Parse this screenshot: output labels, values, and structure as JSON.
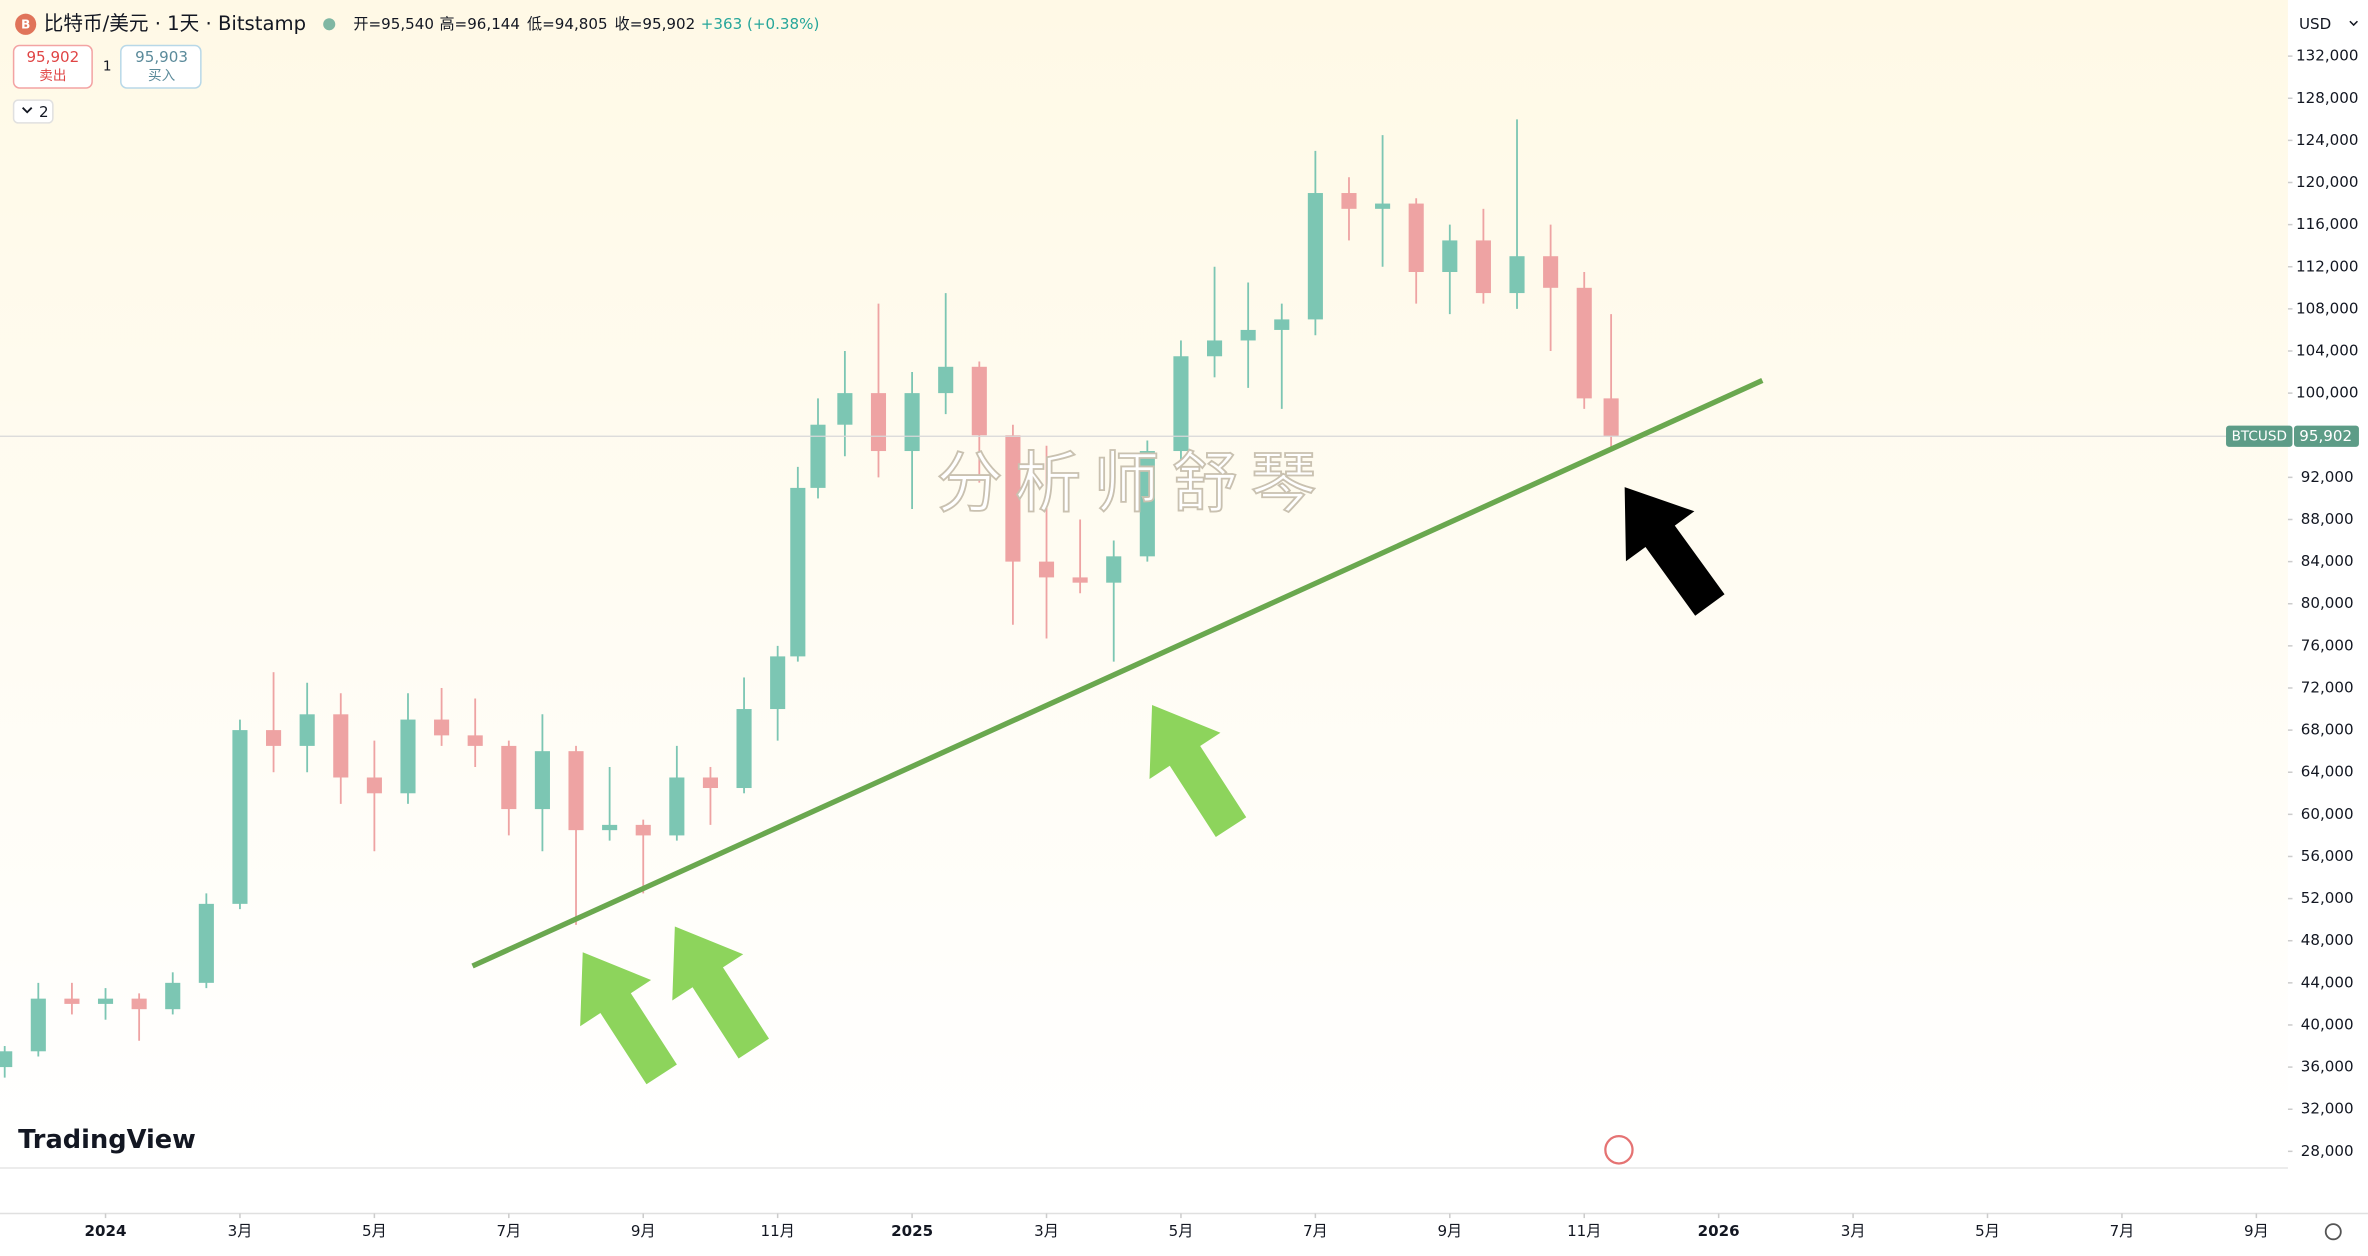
{
  "header": {
    "title": "比特币/美元 · 1天 · Bitstamp",
    "open": "开=95,540",
    "high": "高=96,144",
    "low": "低=94,805",
    "close": "收=95,902",
    "change": "+363 (+0.38%)",
    "sell_price": "95,902",
    "sell": "卖出",
    "quantity": "1",
    "buy_price": "95,903",
    "buy": "买入",
    "indicators": "2",
    "currency": "USD",
    "brand": "TradingView",
    "watermark": "分析师舒琴"
  },
  "chart_data": {
    "type": "candlestick",
    "symbol": "BTCUSD",
    "x": [
      -1.5,
      -1,
      -0.5,
      0,
      0.5,
      1,
      1.5,
      2,
      2.5,
      3,
      3.5,
      4,
      4.5,
      5,
      5.5,
      6,
      6.5,
      7,
      7.5,
      8,
      8.5,
      9,
      9.5,
      10,
      10.3,
      10.6,
      11,
      11.5,
      12,
      12.5,
      13,
      13.5,
      14,
      14.5,
      15,
      15.5,
      16,
      16.5,
      17,
      17.5,
      18,
      18.5,
      19,
      19.5,
      20,
      20.5,
      21,
      21.5,
      22,
      22.4
    ],
    "open": [
      36000,
      37500,
      42500,
      42000,
      42500,
      41500,
      44000,
      51500,
      68000,
      66500,
      69500,
      63500,
      62000,
      69000,
      67500,
      66500,
      60500,
      66000,
      58500,
      59000,
      58000,
      63500,
      62500,
      70000,
      75000,
      91000,
      97000,
      100000,
      94500,
      100000,
      102500,
      96000,
      84000,
      82500,
      82000,
      84500,
      94500,
      103500,
      105000,
      106000,
      107000,
      119000,
      117500,
      118000,
      111500,
      114500,
      109500,
      113000,
      110000,
      99500
    ],
    "high": [
      38000,
      44000,
      44000,
      43500,
      43000,
      45000,
      52500,
      69000,
      73500,
      72500,
      71500,
      67000,
      71500,
      72000,
      71000,
      67000,
      69500,
      66500,
      64500,
      59500,
      66500,
      64500,
      73000,
      76000,
      93000,
      99500,
      104000,
      108500,
      102000,
      109500,
      103000,
      97000,
      95000,
      88000,
      86000,
      95500,
      105000,
      112000,
      110500,
      108500,
      123000,
      120500,
      124500,
      118500,
      116000,
      117500,
      126000,
      116000,
      111500,
      107500
    ],
    "low": [
      35000,
      37000,
      41000,
      40500,
      38500,
      41000,
      43500,
      51000,
      64000,
      64000,
      61000,
      56500,
      61000,
      66500,
      64500,
      58000,
      56500,
      49500,
      57500,
      52500,
      57500,
      59000,
      62000,
      67000,
      74500,
      90000,
      94000,
      92000,
      89000,
      98000,
      91500,
      78000,
      76700,
      81000,
      74500,
      84000,
      93500,
      101500,
      100500,
      98500,
      105500,
      114500,
      112000,
      108500,
      107500,
      108500,
      108000,
      104000,
      98500,
      94800
    ],
    "close": [
      37500,
      42500,
      42000,
      42500,
      41500,
      44000,
      51500,
      68000,
      66500,
      69500,
      63500,
      62000,
      69000,
      67500,
      66500,
      60500,
      66000,
      58500,
      59000,
      58000,
      63500,
      62500,
      70000,
      75000,
      91000,
      97000,
      100000,
      94500,
      100000,
      102500,
      96000,
      84000,
      82500,
      82000,
      84500,
      94500,
      103500,
      105000,
      106000,
      107000,
      119000,
      117500,
      118000,
      111500,
      114500,
      109500,
      113000,
      110000,
      99500,
      95902
    ],
    "up_color": "#7cc6b3",
    "down_color": "#eea3a3",
    "xlim": [
      -1.57,
      32.47
    ],
    "ylim": [
      26416,
      137330
    ],
    "xticks": [
      {
        "value": 0,
        "label": "2024"
      },
      {
        "value": 2,
        "label": "3月"
      },
      {
        "value": 4,
        "label": "5月"
      },
      {
        "value": 6,
        "label": "7月"
      },
      {
        "value": 8,
        "label": "9月"
      },
      {
        "value": 10,
        "label": "11月"
      },
      {
        "value": 12,
        "label": "2025"
      },
      {
        "value": 14,
        "label": "3月"
      },
      {
        "value": 16,
        "label": "5月"
      },
      {
        "value": 18,
        "label": "7月"
      },
      {
        "value": 20,
        "label": "9月"
      },
      {
        "value": 22,
        "label": "11月"
      },
      {
        "value": 24,
        "label": "2026"
      },
      {
        "value": 26,
        "label": "3月"
      },
      {
        "value": 28,
        "label": "5月"
      },
      {
        "value": 30,
        "label": "7月"
      },
      {
        "value": 32,
        "label": "9月"
      }
    ],
    "yticks": [
      {
        "value": 28000,
        "label": "28,000"
      },
      {
        "value": 32000,
        "label": "32,000"
      },
      {
        "value": 36000,
        "label": "36,000"
      },
      {
        "value": 40000,
        "label": "40,000"
      },
      {
        "value": 44000,
        "label": "44,000"
      },
      {
        "value": 48000,
        "label": "48,000"
      },
      {
        "value": 52000,
        "label": "52,000"
      },
      {
        "value": 56000,
        "label": "56,000"
      },
      {
        "value": 60000,
        "label": "60,000"
      },
      {
        "value": 64000,
        "label": "64,000"
      },
      {
        "value": 68000,
        "label": "68,000"
      },
      {
        "value": 72000,
        "label": "72,000"
      },
      {
        "value": 76000,
        "label": "76,000"
      },
      {
        "value": 80000,
        "label": "80,000"
      },
      {
        "value": 84000,
        "label": "84,000"
      },
      {
        "value": 88000,
        "label": "88,000"
      },
      {
        "value": 92000,
        "label": "92,000"
      },
      {
        "value": 96000,
        "label": "96,000"
      },
      {
        "value": 100000,
        "label": "100,000"
      },
      {
        "value": 104000,
        "label": "104,000"
      },
      {
        "value": 108000,
        "label": "108,000"
      },
      {
        "value": 112000,
        "label": "112,000"
      },
      {
        "value": 116000,
        "label": "116,000"
      },
      {
        "value": 120000,
        "label": "120,000"
      },
      {
        "value": 124000,
        "label": "124,000"
      },
      {
        "value": 128000,
        "label": "128,000"
      },
      {
        "value": 132000,
        "label": "132,000"
      }
    ],
    "last_price": {
      "value": 95902,
      "label": "95,902"
    },
    "trendline": {
      "x": [
        5.46,
        24.65
      ],
      "y": [
        45600,
        101200
      ],
      "color": "#6aa84f"
    }
  }
}
